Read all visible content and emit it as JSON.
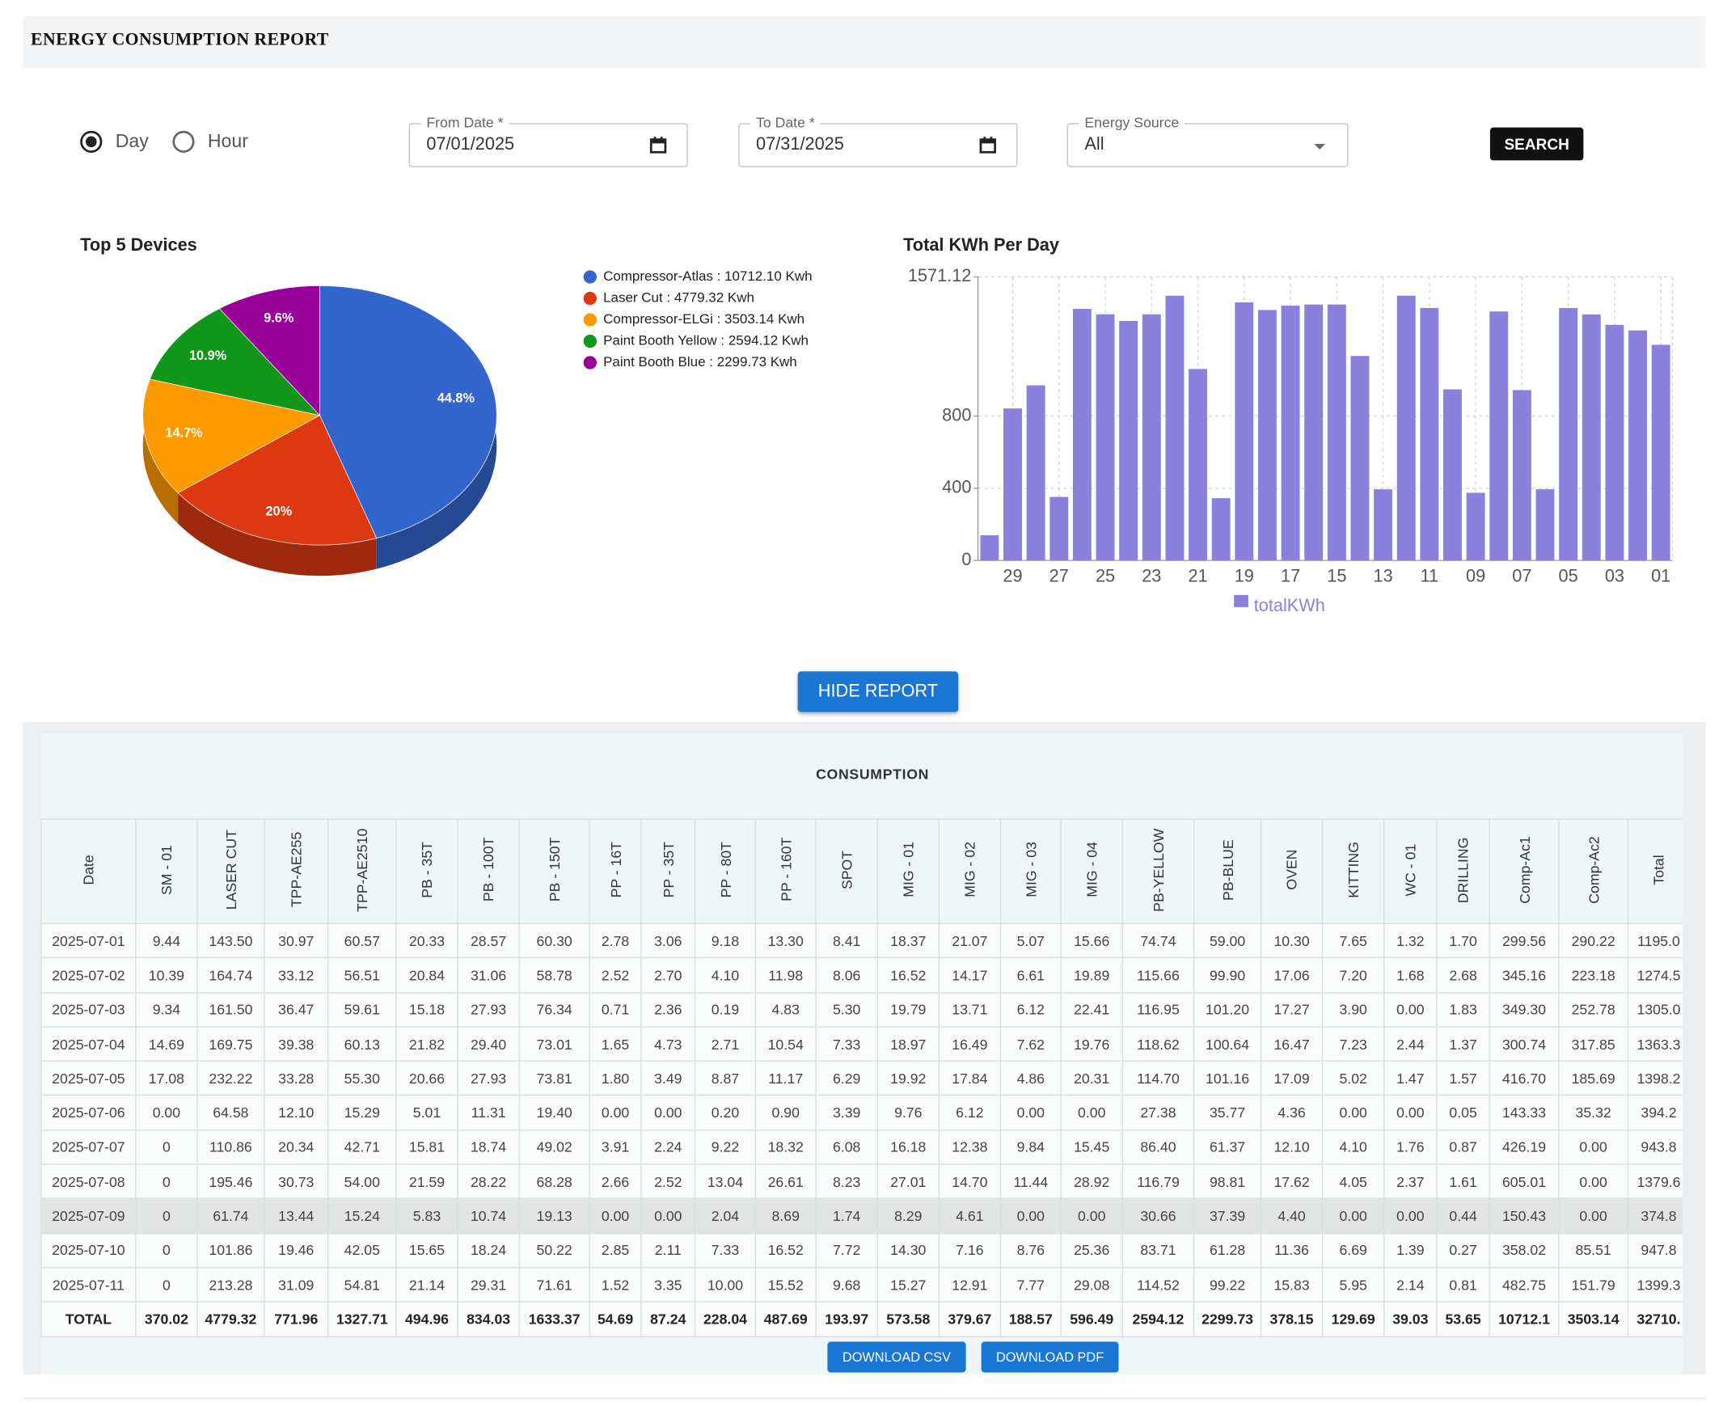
{
  "header": {
    "title": "ENERGY CONSUMPTION REPORT"
  },
  "controls": {
    "granularity": [
      {
        "label": "Day",
        "checked": true
      },
      {
        "label": "Hour",
        "checked": false
      }
    ],
    "from_date": {
      "label": "From Date *",
      "value": "07/01/2025"
    },
    "to_date": {
      "label": "To Date *",
      "value": "07/31/2025"
    },
    "energy_source": {
      "label": "Energy Source",
      "value": "All"
    },
    "search": "SEARCH",
    "hide_report": "HIDE REPORT"
  },
  "chart_data": [
    {
      "type": "pie",
      "title": "Top 5 Devices",
      "categories": [
        "Compressor-Atlas : 10712.10 Kwh",
        "Laser Cut : 4779.32 Kwh",
        "Compressor-ELGi : 3503.14 Kwh",
        "Paint Booth Yellow : 2594.12 Kwh",
        "Paint Booth Blue : 2299.73 Kwh"
      ],
      "values": [
        44.8,
        20,
        14.7,
        10.9,
        9.6
      ],
      "value_labels": [
        "44.8%",
        "20%",
        "14.7%",
        "10.9%",
        "9.6%"
      ],
      "colors": [
        "#3366cc",
        "#dc3912",
        "#ff9900",
        "#109618",
        "#990099"
      ],
      "legend": "right"
    },
    {
      "type": "bar",
      "title": "Total KWh Per Day",
      "categories": [
        null,
        "29",
        null,
        "27",
        null,
        "25",
        null,
        "23",
        null,
        "21",
        null,
        "19",
        null,
        "17",
        null,
        "15",
        null,
        "13",
        null,
        "11",
        null,
        "09",
        null,
        "07",
        null,
        "05",
        null,
        "03",
        null,
        "01"
      ],
      "series": [
        {
          "name": "totalKWh",
          "color": "#8b80dc",
          "values": [
            139,
            842,
            970,
            352,
            1394,
            1364,
            1327,
            1364,
            1467,
            1061,
            345,
            1430,
            1388,
            1412,
            1418,
            1418,
            1133,
            394,
            1467,
            1399.3,
            947.8,
            374.8,
            1379.6,
            943.8,
            394.2,
            1398.2,
            1363.3,
            1305,
            1274.5,
            1195
          ]
        }
      ],
      "ylim": [
        0,
        1571.12
      ],
      "yticks": [
        0,
        400,
        800,
        1571.12
      ],
      "grid": true,
      "legend": "bottom"
    }
  ],
  "table": {
    "title": "CONSUMPTION",
    "columns": [
      "Date",
      "SM - 01",
      "LASER CUT",
      "TPP-AE255",
      "TPP-AE2510",
      "PB - 35T",
      "PB - 100T",
      "PB - 150T",
      "PP - 16T",
      "PP - 35T",
      "PP - 80T",
      "PP - 160T",
      "SPOT",
      "MIG - 01",
      "MIG - 02",
      "MIG - 03",
      "MIG - 04",
      "PB-YELLOW",
      "PB-BLUE",
      "OVEN",
      "KITTING",
      "WC - 01",
      "DRILLING",
      "Comp-Ac1",
      "Comp-Ac2",
      "Total"
    ],
    "rows": [
      [
        "2025-07-01",
        "9.44",
        "143.50",
        "30.97",
        "60.57",
        "20.33",
        "28.57",
        "60.30",
        "2.78",
        "3.06",
        "9.18",
        "13.30",
        "8.41",
        "18.37",
        "21.07",
        "5.07",
        "15.66",
        "74.74",
        "59.00",
        "10.30",
        "7.65",
        "1.32",
        "1.70",
        "299.56",
        "290.22",
        "1195.0"
      ],
      [
        "2025-07-02",
        "10.39",
        "164.74",
        "33.12",
        "56.51",
        "20.84",
        "31.06",
        "58.78",
        "2.52",
        "2.70",
        "4.10",
        "11.98",
        "8.06",
        "16.52",
        "14.17",
        "6.61",
        "19.89",
        "115.66",
        "99.90",
        "17.06",
        "7.20",
        "1.68",
        "2.68",
        "345.16",
        "223.18",
        "1274.5"
      ],
      [
        "2025-07-03",
        "9.34",
        "161.50",
        "36.47",
        "59.61",
        "15.18",
        "27.93",
        "76.34",
        "0.71",
        "2.36",
        "0.19",
        "4.83",
        "5.30",
        "19.79",
        "13.71",
        "6.12",
        "22.41",
        "116.95",
        "101.20",
        "17.27",
        "3.90",
        "0.00",
        "1.83",
        "349.30",
        "252.78",
        "1305.0"
      ],
      [
        "2025-07-04",
        "14.69",
        "169.75",
        "39.38",
        "60.13",
        "21.82",
        "29.40",
        "73.01",
        "1.65",
        "4.73",
        "2.71",
        "10.54",
        "7.33",
        "18.97",
        "16.49",
        "7.62",
        "19.76",
        "118.62",
        "100.64",
        "16.47",
        "7.23",
        "2.44",
        "1.37",
        "300.74",
        "317.85",
        "1363.3"
      ],
      [
        "2025-07-05",
        "17.08",
        "232.22",
        "33.28",
        "55.30",
        "20.66",
        "27.93",
        "73.81",
        "1.80",
        "3.49",
        "8.87",
        "11.17",
        "6.29",
        "19.92",
        "17.84",
        "4.86",
        "20.31",
        "114.70",
        "101.16",
        "17.09",
        "5.02",
        "1.47",
        "1.57",
        "416.70",
        "185.69",
        "1398.2"
      ],
      [
        "2025-07-06",
        "0.00",
        "64.58",
        "12.10",
        "15.29",
        "5.01",
        "11.31",
        "19.40",
        "0.00",
        "0.00",
        "0.20",
        "0.90",
        "3.39",
        "9.76",
        "6.12",
        "0.00",
        "0.00",
        "27.38",
        "35.77",
        "4.36",
        "0.00",
        "0.00",
        "0.05",
        "143.33",
        "35.32",
        "394.2"
      ],
      [
        "2025-07-07",
        "0",
        "110.86",
        "20.34",
        "42.71",
        "15.81",
        "18.74",
        "49.02",
        "3.91",
        "2.24",
        "9.22",
        "18.32",
        "6.08",
        "16.18",
        "12.38",
        "9.84",
        "15.45",
        "86.40",
        "61.37",
        "12.10",
        "4.10",
        "1.76",
        "0.87",
        "426.19",
        "0.00",
        "943.8"
      ],
      [
        "2025-07-08",
        "0",
        "195.46",
        "30.73",
        "54.00",
        "21.59",
        "28.22",
        "68.28",
        "2.66",
        "2.52",
        "13.04",
        "26.61",
        "8.23",
        "27.01",
        "14.70",
        "11.44",
        "28.92",
        "116.79",
        "98.81",
        "17.62",
        "4.05",
        "2.37",
        "1.61",
        "605.01",
        "0.00",
        "1379.6"
      ],
      [
        "2025-07-09",
        "0",
        "61.74",
        "13.44",
        "15.24",
        "5.83",
        "10.74",
        "19.13",
        "0.00",
        "0.00",
        "2.04",
        "8.69",
        "1.74",
        "8.29",
        "4.61",
        "0.00",
        "0.00",
        "30.66",
        "37.39",
        "4.40",
        "0.00",
        "0.00",
        "0.44",
        "150.43",
        "0.00",
        "374.8"
      ],
      [
        "2025-07-10",
        "0",
        "101.86",
        "19.46",
        "42.05",
        "15.65",
        "18.24",
        "50.22",
        "2.85",
        "2.11",
        "7.33",
        "16.52",
        "7.72",
        "14.30",
        "7.16",
        "8.76",
        "25.36",
        "83.71",
        "61.28",
        "11.36",
        "6.69",
        "1.39",
        "0.27",
        "358.02",
        "85.51",
        "947.8"
      ],
      [
        "2025-07-11",
        "0",
        "213.28",
        "31.09",
        "54.81",
        "21.14",
        "29.31",
        "71.61",
        "1.52",
        "3.35",
        "10.00",
        "15.52",
        "9.68",
        "15.27",
        "12.91",
        "7.77",
        "29.08",
        "114.52",
        "99.22",
        "15.83",
        "5.95",
        "2.14",
        "0.81",
        "482.75",
        "151.79",
        "1399.3"
      ]
    ],
    "footer": [
      "TOTAL",
      "370.02",
      "4779.32",
      "771.96",
      "1327.71",
      "494.96",
      "834.03",
      "1633.37",
      "54.69",
      "87.24",
      "228.04",
      "487.69",
      "193.97",
      "573.58",
      "379.67",
      "188.57",
      "596.49",
      "2594.12",
      "2299.73",
      "378.15",
      "129.69",
      "39.03",
      "53.65",
      "10712.1",
      "3503.14",
      "32710."
    ],
    "downloads": [
      "DOWNLOAD CSV",
      "DOWNLOAD PDF"
    ]
  }
}
